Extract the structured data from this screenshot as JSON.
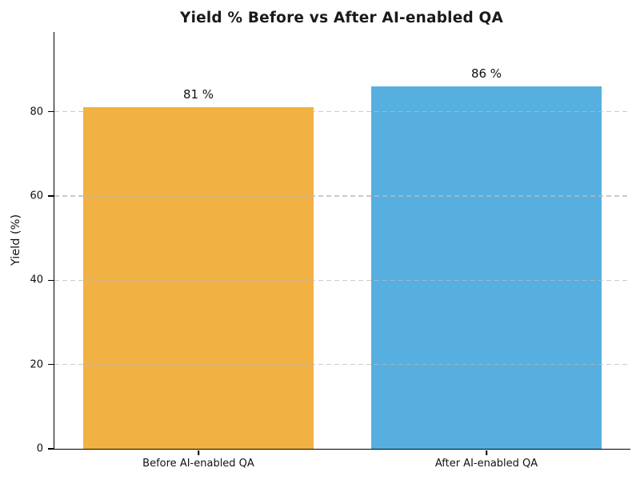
{
  "chart_data": {
    "type": "bar",
    "title": "Yield % Before vs After AI-enabled QA",
    "categories": [
      "Before AI-enabled QA",
      "After AI-enabled QA"
    ],
    "values": [
      81,
      86
    ],
    "value_labels": [
      "81 %",
      "86 %"
    ],
    "bar_colors": [
      "#F2B143",
      "#57AFE0"
    ],
    "xlabel": "",
    "ylabel": "Yield (%)",
    "ylim": [
      0,
      98.9
    ],
    "yticks": [
      0,
      20,
      40,
      60,
      80
    ],
    "grid": "horizontal-dashed",
    "grid_color": "#b9b9b9",
    "axis_color": "#000000",
    "title_color": "#1a1a1a",
    "legend": "none"
  }
}
